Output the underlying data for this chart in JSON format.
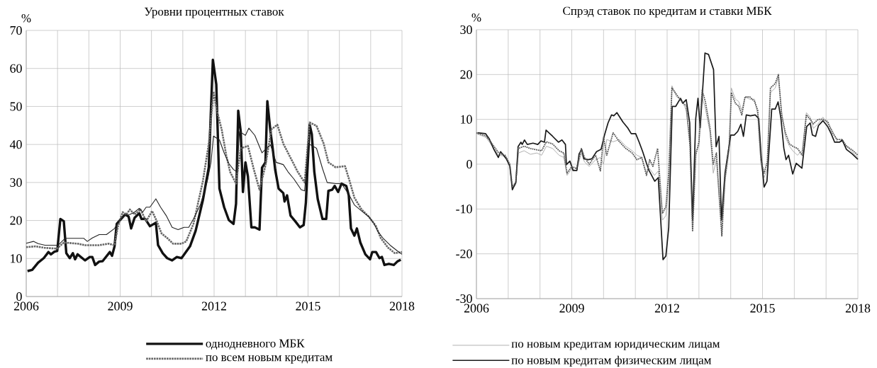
{
  "chart_data": [
    {
      "type": "line",
      "title": "Уровни процентных ставок",
      "ylabel": "%",
      "xlim": [
        2006,
        2018
      ],
      "ylim": [
        0,
        70
      ],
      "xticks": [
        2006,
        {
          "value": 2007,
          "label": null
        },
        {
          "value": 2008,
          "label": null
        },
        2009,
        {
          "value": 2010,
          "label": null
        },
        {
          "value": 2011,
          "label": null
        },
        2012,
        {
          "value": 2013,
          "label": null
        },
        {
          "value": 2014,
          "label": null
        },
        2015,
        {
          "value": 2016,
          "label": null
        },
        {
          "value": 2017,
          "label": null
        },
        2018
      ],
      "yticks": [
        0,
        10,
        20,
        30,
        40,
        50,
        60,
        70
      ],
      "grid": true,
      "legend": "bottom",
      "series": [
        {
          "name": "однодневного МБК",
          "color": "#111111",
          "line_style": "solid",
          "x": [
            2006.04,
            2006.19,
            2006.38,
            2006.56,
            2006.71,
            2006.79,
            2006.9,
            2006.99,
            2007.09,
            2007.2,
            2007.28,
            2007.39,
            2007.49,
            2007.56,
            2007.64,
            2007.88,
            2008.03,
            2008.11,
            2008.2,
            2008.33,
            2008.44,
            2008.67,
            2008.74,
            2008.82,
            2008.89,
            2009.16,
            2009.27,
            2009.35,
            2009.46,
            2009.61,
            2009.68,
            2009.8,
            2009.95,
            2010.14,
            2010.21,
            2010.36,
            2010.5,
            2010.66,
            2010.81,
            2010.96,
            2011.23,
            2011.41,
            2011.64,
            2011.83,
            2011.96,
            2012.07,
            2012.17,
            2012.32,
            2012.47,
            2012.62,
            2012.7,
            2012.77,
            2012.85,
            2012.92,
            2013.0,
            2013.08,
            2013.19,
            2013.3,
            2013.45,
            2013.53,
            2013.64,
            2013.7,
            2013.8,
            2013.87,
            2013.95,
            2014.06,
            2014.21,
            2014.25,
            2014.33,
            2014.44,
            2014.59,
            2014.74,
            2014.86,
            2014.93,
            2015.05,
            2015.12,
            2015.2,
            2015.31,
            2015.46,
            2015.58,
            2015.65,
            2015.77,
            2015.85,
            2015.96,
            2016.07,
            2016.22,
            2016.3,
            2016.37,
            2016.48,
            2016.56,
            2016.67,
            2016.83,
            2016.98,
            2017.05,
            2017.17,
            2017.28,
            2017.36,
            2017.44,
            2017.58,
            2017.74,
            2017.85,
            2017.96
          ],
          "values": [
            6.7,
            7.0,
            8.9,
            10.1,
            11.7,
            11.1,
            11.8,
            12.0,
            20.4,
            19.8,
            11.4,
            10.1,
            11.4,
            9.8,
            11.1,
            9.5,
            10.4,
            10.4,
            8.3,
            9.2,
            9.3,
            11.7,
            10.7,
            13.2,
            19.1,
            21.6,
            21.0,
            17.9,
            20.7,
            21.9,
            20.4,
            20.4,
            18.5,
            19.4,
            13.5,
            11.4,
            10.1,
            9.5,
            10.4,
            10.1,
            13.2,
            17.3,
            25.3,
            34.0,
            62.3,
            55.8,
            28.4,
            23.5,
            20.1,
            19.1,
            24.4,
            48.9,
            43.4,
            27.5,
            35.3,
            31.6,
            18.2,
            18.2,
            17.6,
            33.9,
            35.3,
            51.4,
            43.4,
            39.0,
            33.4,
            28.4,
            27.2,
            25.0,
            26.6,
            21.3,
            19.8,
            18.2,
            18.8,
            24.7,
            45.2,
            42.7,
            32.8,
            25.6,
            20.4,
            20.4,
            27.8,
            28.1,
            29.1,
            27.5,
            29.7,
            29.1,
            26.6,
            17.9,
            16.0,
            17.9,
            14.2,
            11.1,
            9.8,
            11.7,
            11.7,
            10.1,
            10.4,
            8.3,
            8.6,
            8.3,
            9.2,
            9.7
          ]
        },
        {
          "name": "по всем новым кредитам",
          "color": "#666666",
          "line_style": "dotted",
          "x": [
            2006.0,
            2006.3,
            2006.6,
            2006.98,
            2007.2,
            2007.65,
            2007.88,
            2008.33,
            2008.63,
            2008.82,
            2008.93,
            2009.08,
            2009.2,
            2009.31,
            2009.46,
            2009.65,
            2009.83,
            2010.02,
            2010.17,
            2010.32,
            2010.5,
            2010.69,
            2010.96,
            2011.11,
            2011.34,
            2011.64,
            2011.83,
            2011.98,
            2012.09,
            2012.24,
            2012.39,
            2012.51,
            2012.7,
            2012.85,
            2013.08,
            2013.27,
            2013.45,
            2013.64,
            2013.83,
            2014.02,
            2014.21,
            2014.44,
            2014.67,
            2014.89,
            2015.05,
            2015.27,
            2015.5,
            2015.65,
            2015.88,
            2016.18,
            2016.33,
            2016.48,
            2016.71,
            2016.94,
            2017.17,
            2017.32,
            2017.55,
            2017.77,
            2018.0
          ],
          "values": [
            13.0,
            13.2,
            12.8,
            12.6,
            14.2,
            13.9,
            13.5,
            13.5,
            13.9,
            13.5,
            18.5,
            22.2,
            21.6,
            22.9,
            21.6,
            22.9,
            19.8,
            22.5,
            19.8,
            16.6,
            15.4,
            13.9,
            13.9,
            14.5,
            19.1,
            30.3,
            40.2,
            53.9,
            48.9,
            44.0,
            37.1,
            32.8,
            29.7,
            39.0,
            39.6,
            33.4,
            28.1,
            34.5,
            44.0,
            45.2,
            40.2,
            36.5,
            32.8,
            30.0,
            45.8,
            44.9,
            40.2,
            35.3,
            34.0,
            34.3,
            30.3,
            26.0,
            22.9,
            21.0,
            18.5,
            15.4,
            12.9,
            11.4,
            11.7
          ]
        },
        {
          "color": "#222222",
          "line_style": "solid",
          "x": [
            2006.0,
            2006.23,
            2006.38,
            2006.6,
            2007.02,
            2007.24,
            2007.84,
            2007.95,
            2008.11,
            2008.33,
            2008.56,
            2008.82,
            2009.01,
            2009.16,
            2009.31,
            2009.46,
            2009.61,
            2009.72,
            2009.83,
            2009.95,
            2010.14,
            2010.29,
            2010.47,
            2010.66,
            2010.85,
            2011.04,
            2011.19,
            2011.34,
            2011.56,
            2011.79,
            2011.9,
            2011.98,
            2012.17,
            2012.32,
            2012.47,
            2012.62,
            2012.73,
            2012.81,
            2013.0,
            2013.11,
            2013.3,
            2013.53,
            2013.64,
            2013.8,
            2013.98,
            2014.21,
            2014.36,
            2014.55,
            2014.78,
            2014.89,
            2015.01,
            2015.27,
            2015.46,
            2015.61,
            2015.88,
            2016.07,
            2016.3,
            2016.48,
            2016.71,
            2016.94,
            2017.09,
            2017.24,
            2017.39,
            2017.62,
            2017.85,
            2018.0
          ],
          "values": [
            14.0,
            14.5,
            13.9,
            13.5,
            13.5,
            15.3,
            15.3,
            14.5,
            15.4,
            16.3,
            16.3,
            17.9,
            20.4,
            21.3,
            21.6,
            22.2,
            23.2,
            22.2,
            23.5,
            23.5,
            25.7,
            23.5,
            21.3,
            18.2,
            17.6,
            18.2,
            18.2,
            20.4,
            24.1,
            30.6,
            35.3,
            42.2,
            41.2,
            37.8,
            35.0,
            33.4,
            32.8,
            43.4,
            42.4,
            44.3,
            42.4,
            37.8,
            38.7,
            39.9,
            35.3,
            34.7,
            32.8,
            30.9,
            28.1,
            27.8,
            40.2,
            39.0,
            33.7,
            30.0,
            29.7,
            29.7,
            26.9,
            24.1,
            22.5,
            21.0,
            19.4,
            17.0,
            15.4,
            13.5,
            12.0,
            11.1
          ]
        }
      ]
    },
    {
      "type": "line",
      "title": "Спрэд ставок по кредитам и ставки МБК",
      "ylabel": "%",
      "xlim": [
        2006,
        2018
      ],
      "ylim": [
        -30,
        30
      ],
      "xticks": [
        2006,
        {
          "value": 2007,
          "label": null
        },
        {
          "value": 2008,
          "label": null
        },
        2009,
        {
          "value": 2010,
          "label": null
        },
        {
          "value": 2011,
          "label": null
        },
        2012,
        {
          "value": 2013,
          "label": null
        },
        {
          "value": 2014,
          "label": null
        },
        2015,
        {
          "value": 2016,
          "label": null
        },
        {
          "value": 2017,
          "label": null
        },
        2018
      ],
      "yticks": [
        -30,
        -20,
        -10,
        0,
        10,
        20,
        30
      ],
      "grid": true,
      "legend": "bottom",
      "series": [
        {
          "name": "по новым кредитам юридическим лицам",
          "color": "#b0b0b0",
          "line_style": "solid",
          "x": [
            2006.0,
            2006.3,
            2006.5,
            2006.7,
            2006.9,
            2007.05,
            2007.13,
            2007.24,
            2007.32,
            2007.5,
            2007.7,
            2007.9,
            2008.05,
            2008.2,
            2008.4,
            2008.6,
            2008.75,
            2008.85,
            2009.0,
            2009.15,
            2009.3,
            2009.4,
            2009.55,
            2009.75,
            2009.9,
            2010.0,
            2010.1,
            2010.3,
            2010.5,
            2010.7,
            2010.9,
            2011.05,
            2011.2,
            2011.35,
            2011.45,
            2011.6,
            2011.72,
            2011.85,
            2011.96,
            2012.05,
            2012.15,
            2012.3,
            2012.45,
            2012.6,
            2012.72,
            2012.8,
            2012.9,
            2013.0,
            2013.1,
            2013.2,
            2013.35,
            2013.45,
            2013.55,
            2013.72,
            2013.82,
            2013.95,
            2014.02,
            2014.15,
            2014.25,
            2014.35,
            2014.45,
            2014.6,
            2014.75,
            2014.85,
            2014.95,
            2015.05,
            2015.15,
            2015.25,
            2015.4,
            2015.5,
            2015.6,
            2015.72,
            2015.85,
            2015.95,
            2016.1,
            2016.25,
            2016.38,
            2016.5,
            2016.6,
            2016.75,
            2016.9,
            2017.05,
            2017.2,
            2017.35,
            2017.5,
            2017.65,
            2017.85,
            2018.0
          ],
          "values": [
            6.8,
            6.0,
            4.0,
            2.0,
            1.8,
            -0.5,
            -5.5,
            -4.5,
            2.5,
            3.0,
            2.2,
            2.5,
            2.0,
            4.0,
            3.5,
            2.0,
            1.5,
            -2.5,
            -1.0,
            -1.5,
            2.5,
            0.5,
            -0.5,
            1.0,
            1.5,
            0.0,
            5.5,
            5.0,
            5.5,
            4.0,
            3.0,
            2.0,
            1.5,
            -2.0,
            -1.0,
            -2.5,
            -1.5,
            -12.5,
            -11.5,
            -5.0,
            17.5,
            15.0,
            14.5,
            12.0,
            5.0,
            -14.5,
            3.0,
            4.0,
            15.0,
            12.5,
            7.0,
            -2.0,
            1.0,
            -15.5,
            -4.0,
            3.0,
            17.0,
            14.5,
            14.0,
            12.0,
            15.0,
            14.5,
            14.5,
            11.0,
            0.0,
            -3.0,
            -1.0,
            16.0,
            17.0,
            19.5,
            12.0,
            6.0,
            4.0,
            3.0,
            2.0,
            3.0,
            11.5,
            10.5,
            8.0,
            9.0,
            10.5,
            9.0,
            7.5,
            5.0,
            5.0,
            4.0,
            2.5,
            1.5
          ]
        },
        {
          "name": "по новым кредитам физическим лицам",
          "color": "#1a1a1a",
          "line_style": "solid",
          "x": [
            2006.04,
            2006.29,
            2006.4,
            2006.55,
            2006.69,
            2006.76,
            2006.94,
            2007.05,
            2007.13,
            2007.24,
            2007.31,
            2007.4,
            2007.44,
            2007.51,
            2007.6,
            2007.78,
            2007.93,
            2008.03,
            2008.14,
            2008.19,
            2008.4,
            2008.58,
            2008.69,
            2008.8,
            2008.83,
            2008.94,
            2009.04,
            2009.16,
            2009.23,
            2009.31,
            2009.38,
            2009.52,
            2009.63,
            2009.78,
            2009.92,
            2010.03,
            2010.14,
            2010.25,
            2010.32,
            2010.42,
            2010.61,
            2010.76,
            2010.87,
            2011.01,
            2011.12,
            2011.23,
            2011.35,
            2011.43,
            2011.61,
            2011.72,
            2011.87,
            2011.96,
            2012.05,
            2012.16,
            2012.27,
            2012.42,
            2012.49,
            2012.6,
            2012.71,
            2012.8,
            2012.9,
            2012.97,
            2013.04,
            2013.19,
            2013.3,
            2013.46,
            2013.54,
            2013.63,
            2013.71,
            2013.82,
            2014.0,
            2014.11,
            2014.22,
            2014.32,
            2014.4,
            2014.49,
            2014.62,
            2014.77,
            2014.88,
            2014.96,
            2015.05,
            2015.14,
            2015.29,
            2015.4,
            2015.49,
            2015.58,
            2015.67,
            2015.74,
            2015.82,
            2015.95,
            2016.06,
            2016.24,
            2016.39,
            2016.5,
            2016.57,
            2016.67,
            2016.76,
            2016.9,
            2017.05,
            2017.16,
            2017.27,
            2017.42,
            2017.51,
            2017.64,
            2017.82,
            2018.0
          ],
          "values": [
            7.0,
            6.8,
            5.7,
            3.3,
            1.5,
            2.8,
            1.2,
            -0.4,
            -5.7,
            -4.1,
            3.9,
            4.9,
            4.4,
            5.4,
            4.4,
            4.7,
            4.4,
            5.2,
            4.9,
            7.6,
            6.2,
            4.9,
            5.4,
            4.4,
            -0.1,
            0.7,
            -1.4,
            -1.4,
            2.3,
            3.3,
            1.2,
            1.0,
            1.2,
            2.8,
            3.3,
            6.5,
            9.2,
            11.0,
            10.8,
            11.5,
            9.4,
            8.1,
            6.8,
            6.8,
            4.9,
            2.8,
            0.2,
            -1.4,
            -3.8,
            -3.0,
            -21.3,
            -20.5,
            -14.1,
            12.9,
            12.9,
            14.7,
            13.6,
            14.4,
            9.2,
            -12.5,
            10.2,
            14.7,
            8.1,
            24.8,
            24.5,
            21.1,
            3.9,
            6.2,
            -12.5,
            -2.0,
            6.5,
            6.5,
            7.3,
            8.9,
            6.2,
            11.0,
            10.8,
            11.0,
            10.2,
            1.7,
            -5.1,
            -3.8,
            12.3,
            12.3,
            13.9,
            10.2,
            3.6,
            1.0,
            2.0,
            -2.2,
            0.2,
            -0.9,
            8.4,
            9.2,
            6.5,
            6.2,
            8.6,
            9.7,
            8.4,
            6.8,
            4.9,
            4.9,
            5.4,
            3.3,
            2.3,
            1.1
          ]
        },
        {
          "color": "#555555",
          "line_style": "dotted",
          "x": [
            2006.0,
            2006.3,
            2006.5,
            2006.7,
            2006.9,
            2007.05,
            2007.13,
            2007.24,
            2007.32,
            2007.5,
            2007.7,
            2007.9,
            2008.05,
            2008.2,
            2008.4,
            2008.6,
            2008.75,
            2008.85,
            2009.0,
            2009.15,
            2009.3,
            2009.4,
            2009.55,
            2009.75,
            2009.9,
            2010.0,
            2010.1,
            2010.3,
            2010.5,
            2010.7,
            2010.9,
            2011.05,
            2011.2,
            2011.35,
            2011.45,
            2011.55,
            2011.7,
            2011.85,
            2011.96,
            2012.05,
            2012.15,
            2012.3,
            2012.45,
            2012.6,
            2012.72,
            2012.8,
            2012.9,
            2013.0,
            2013.1,
            2013.2,
            2013.35,
            2013.45,
            2013.55,
            2013.72,
            2013.82,
            2013.95,
            2014.02,
            2014.15,
            2014.25,
            2014.35,
            2014.45,
            2014.6,
            2014.75,
            2014.85,
            2014.95,
            2015.05,
            2015.15,
            2015.25,
            2015.4,
            2015.5,
            2015.6,
            2015.72,
            2015.85,
            2015.95,
            2016.1,
            2016.25,
            2016.38,
            2016.5,
            2016.6,
            2016.75,
            2016.9,
            2017.05,
            2017.2,
            2017.35,
            2017.5,
            2017.65,
            2017.85,
            2018.0
          ],
          "values": [
            7.0,
            6.3,
            4.5,
            2.5,
            2.0,
            0.0,
            -5.0,
            -4.0,
            3.5,
            4.0,
            3.5,
            3.2,
            3.0,
            5.0,
            4.5,
            3.0,
            2.5,
            -2.0,
            -0.5,
            -1.0,
            3.5,
            1.5,
            0.0,
            2.0,
            -1.5,
            6.0,
            2.0,
            7.0,
            5.0,
            3.5,
            2.5,
            1.0,
            1.5,
            -2.5,
            1.0,
            -0.5,
            3.5,
            -11.0,
            -9.5,
            -2.0,
            17.0,
            15.5,
            14.0,
            13.0,
            4.0,
            -15.0,
            2.0,
            5.0,
            16.5,
            14.0,
            8.0,
            0.0,
            2.5,
            -16.0,
            -3.0,
            4.0,
            16.0,
            13.5,
            13.0,
            11.0,
            15.0,
            15.0,
            14.0,
            12.0,
            1.0,
            -2.0,
            0.5,
            17.0,
            18.0,
            20.0,
            11.0,
            7.0,
            4.5,
            4.0,
            3.5,
            2.0,
            11.0,
            10.0,
            9.0,
            10.0,
            10.0,
            9.5,
            7.0,
            5.5,
            5.5,
            4.0,
            3.0,
            2.0
          ]
        }
      ]
    }
  ]
}
